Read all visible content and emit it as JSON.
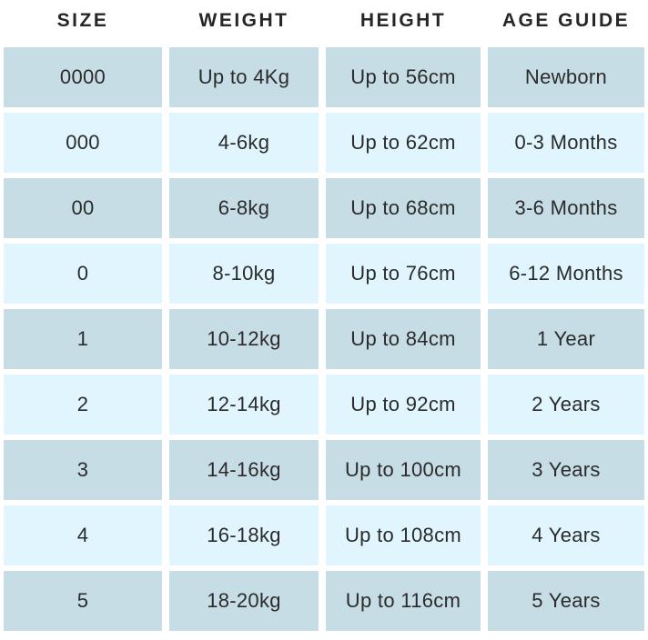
{
  "colors": {
    "background": "#ffffff",
    "row_dark": "#c7dde6",
    "row_light": "#e0f5fd",
    "text": "#2b2b2b",
    "header_text": "#262626"
  },
  "chart_data": {
    "type": "table",
    "columns": [
      {
        "key": "size",
        "label": "SIZE"
      },
      {
        "key": "weight",
        "label": "WEIGHT"
      },
      {
        "key": "height",
        "label": "HEIGHT"
      },
      {
        "key": "age",
        "label": "AGE GUIDE"
      }
    ],
    "rows": [
      {
        "size": "0000",
        "weight": "Up to 4Kg",
        "height": "Up to 56cm",
        "age": "Newborn",
        "shade": "dark"
      },
      {
        "size": "000",
        "weight": "4-6kg",
        "height": "Up to 62cm",
        "age": "0-3 Months",
        "shade": "light"
      },
      {
        "size": "00",
        "weight": "6-8kg",
        "height": "Up to 68cm",
        "age": "3-6 Months",
        "shade": "dark"
      },
      {
        "size": "0",
        "weight": "8-10kg",
        "height": "Up to 76cm",
        "age": "6-12 Months",
        "shade": "light"
      },
      {
        "size": "1",
        "weight": "10-12kg",
        "height": "Up to 84cm",
        "age": "1 Year",
        "shade": "dark"
      },
      {
        "size": "2",
        "weight": "12-14kg",
        "height": "Up to 92cm",
        "age": "2 Years",
        "shade": "light"
      },
      {
        "size": "3",
        "weight": "14-16kg",
        "height": "Up to 100cm",
        "age": "3 Years",
        "shade": "dark"
      },
      {
        "size": "4",
        "weight": "16-18kg",
        "height": "Up to 108cm",
        "age": "4 Years",
        "shade": "light"
      },
      {
        "size": "5",
        "weight": "18-20kg",
        "height": "Up to 116cm",
        "age": "5 Years",
        "shade": "dark"
      }
    ]
  }
}
